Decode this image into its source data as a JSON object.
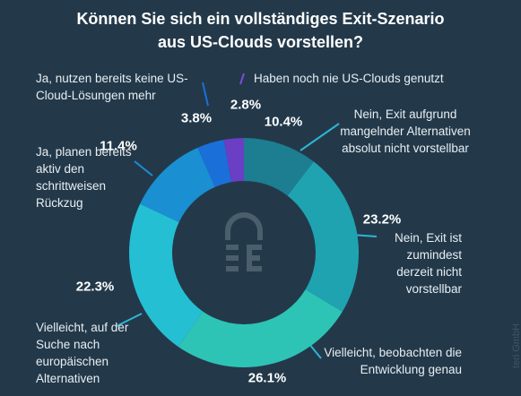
{
  "title_lines": [
    "Können Sie sich ein vollständiges Exit-Szenario",
    "aus US-Clouds vorstellen?"
  ],
  "watermark": "teri GmbH",
  "chart_data": {
    "type": "donut",
    "categories": [
      "Nein, Exit aufgrund mangelnder Alternativen absolut nicht vorstellbar",
      "Nein, Exit ist zumindest derzeit nicht vorstellbar",
      "Vielleicht, beobachten die Entwicklung genau",
      "Vielleicht, auf der Suche nach europäischen Alternativen",
      "Ja, planen bereits aktiv den schrittweisen Rückzug",
      "Ja, nutzen bereits keine US-Cloud-Lösungen mehr",
      "Haben noch nie US-Clouds genutzt"
    ],
    "values": [
      10.4,
      23.2,
      26.1,
      22.3,
      11.4,
      3.8,
      2.8
    ],
    "value_labels": [
      "10.4%",
      "23.2%",
      "26.1%",
      "22.3%",
      "11.4%",
      "3.8%",
      "2.8%"
    ],
    "colors": [
      "#1d7d91",
      "#1fa3b0",
      "#2dc4b6",
      "#25bfd4",
      "#1a8fd1",
      "#1b6fd9",
      "#6a3fc4"
    ]
  }
}
